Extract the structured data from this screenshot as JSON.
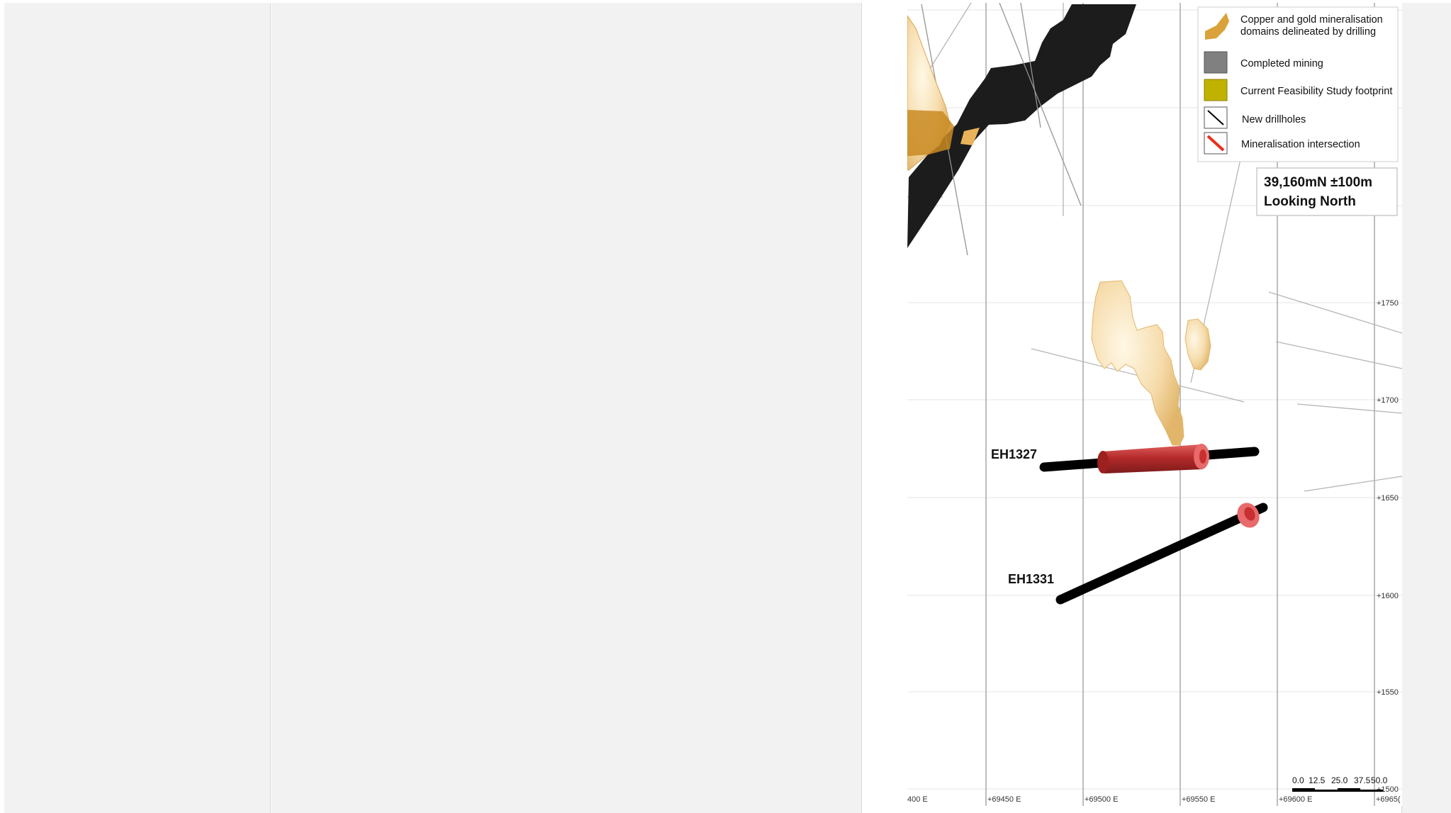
{
  "section": {
    "title_line1": "39,160mN ±100m",
    "title_line2": "Looking North"
  },
  "legend": {
    "items": [
      {
        "label_line1": "Copper and gold mineralisation",
        "label_line2": "domains delineated by drilling",
        "swatch_color": "#d9a23a",
        "icon": "mineralisation-domain-icon"
      },
      {
        "label": "Completed mining",
        "swatch_color": "#808080",
        "icon": "completed-mining-swatch"
      },
      {
        "label": "Current Feasibility Study footprint",
        "swatch_color": "#c2b200",
        "icon": "feasibility-footprint-swatch"
      },
      {
        "label": "New drillholes",
        "swatch_color": "#000000",
        "icon": "new-drillhole-line-icon"
      },
      {
        "label": "Mineralisation intersection",
        "swatch_color": "#e8301a",
        "icon": "intersection-line-icon"
      }
    ]
  },
  "drillholes": [
    {
      "label": "EH1327"
    },
    {
      "label": "EH1331"
    }
  ],
  "axes": {
    "easting": [
      "400 E",
      "+69450 E",
      "+69500 E",
      "+69550 E",
      "+69600 E",
      "+6965("
    ],
    "elevation": [
      "+1750",
      "+1700",
      "+1650",
      "+1600",
      "+1550",
      "+1500"
    ]
  },
  "scale_bar": {
    "labels": [
      "0.0",
      "12.5",
      "25.0",
      "37.5",
      "50.0"
    ]
  },
  "colors": {
    "background": "#f2f2f2",
    "completed_mining": "#1a1a1a",
    "mineralisation": "#f3d9a8",
    "intersection": "#b52a2a"
  }
}
